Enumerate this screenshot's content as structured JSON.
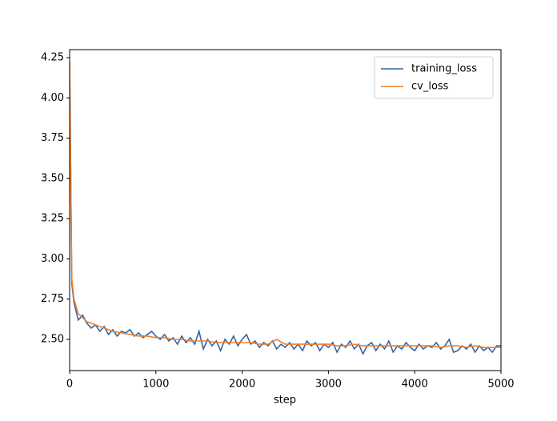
{
  "chart_data": {
    "type": "line",
    "xlabel": "step",
    "xlim": [
      0,
      5000
    ],
    "xticks": [
      0,
      1000,
      2000,
      3000,
      4000,
      5000
    ],
    "ylim": [
      2.306,
      4.3
    ],
    "yticks": [
      {
        "value": 2.5,
        "label": "2.50"
      },
      2.75,
      {
        "value": 3,
        "label": "3.00"
      },
      3.25,
      {
        "value": 3.5,
        "label": "3.50"
      },
      3.75,
      {
        "value": 4,
        "label": "4.00"
      },
      4.25
    ],
    "legend": "upper right",
    "series": [
      {
        "name": "training_loss",
        "color": "#3465a4",
        "x": [
          0,
          25,
          50,
          100,
          150,
          200,
          250,
          300,
          350,
          400,
          450,
          500,
          550,
          600,
          650,
          700,
          750,
          800,
          850,
          900,
          950,
          1000,
          1050,
          1100,
          1150,
          1200,
          1250,
          1300,
          1350,
          1400,
          1450,
          1500,
          1550,
          1600,
          1650,
          1700,
          1750,
          1800,
          1850,
          1900,
          1950,
          2000,
          2050,
          2100,
          2150,
          2200,
          2250,
          2300,
          2350,
          2400,
          2450,
          2500,
          2550,
          2600,
          2650,
          2700,
          2750,
          2800,
          2850,
          2900,
          2950,
          3000,
          3050,
          3100,
          3150,
          3200,
          3250,
          3300,
          3350,
          3400,
          3450,
          3500,
          3550,
          3600,
          3650,
          3700,
          3750,
          3800,
          3850,
          3900,
          3950,
          4000,
          4050,
          4100,
          4150,
          4200,
          4250,
          4300,
          4350,
          4400,
          4450,
          4500,
          4550,
          4600,
          4650,
          4700,
          4750,
          4800,
          4850,
          4900,
          4950,
          5000
        ],
        "values": [
          4.22,
          2.85,
          2.73,
          2.62,
          2.65,
          2.6,
          2.57,
          2.59,
          2.55,
          2.58,
          2.53,
          2.56,
          2.52,
          2.55,
          2.54,
          2.56,
          2.52,
          2.54,
          2.51,
          2.53,
          2.55,
          2.52,
          2.5,
          2.53,
          2.49,
          2.51,
          2.47,
          2.52,
          2.48,
          2.51,
          2.47,
          2.55,
          2.44,
          2.5,
          2.46,
          2.49,
          2.43,
          2.5,
          2.47,
          2.52,
          2.46,
          2.5,
          2.53,
          2.47,
          2.49,
          2.45,
          2.48,
          2.46,
          2.49,
          2.44,
          2.47,
          2.45,
          2.48,
          2.44,
          2.47,
          2.43,
          2.49,
          2.46,
          2.48,
          2.43,
          2.47,
          2.45,
          2.48,
          2.42,
          2.47,
          2.45,
          2.49,
          2.44,
          2.47,
          2.41,
          2.46,
          2.48,
          2.43,
          2.47,
          2.44,
          2.49,
          2.42,
          2.46,
          2.44,
          2.48,
          2.45,
          2.43,
          2.47,
          2.44,
          2.46,
          2.45,
          2.48,
          2.44,
          2.46,
          2.5,
          2.42,
          2.43,
          2.46,
          2.44,
          2.47,
          2.42,
          2.46,
          2.43,
          2.45,
          2.42,
          2.46,
          2.46
        ]
      },
      {
        "name": "cv_loss",
        "color": "#f07f2a",
        "x": [
          0,
          25,
          50,
          100,
          200,
          300,
          400,
          500,
          600,
          700,
          800,
          900,
          1000,
          1100,
          1200,
          1300,
          1400,
          1500,
          1600,
          1700,
          1800,
          1900,
          2000,
          2100,
          2200,
          2300,
          2400,
          2500,
          2600,
          2700,
          2800,
          2900,
          3000,
          3100,
          3200,
          3300,
          3400,
          3500,
          3600,
          3700,
          3800,
          3900,
          4000,
          4100,
          4200,
          4300,
          4400,
          4500,
          4600,
          4700,
          4800,
          4900,
          5000
        ],
        "values": [
          4.22,
          2.88,
          2.75,
          2.66,
          2.61,
          2.59,
          2.57,
          2.55,
          2.54,
          2.53,
          2.52,
          2.52,
          2.51,
          2.51,
          2.5,
          2.5,
          2.49,
          2.49,
          2.49,
          2.48,
          2.48,
          2.48,
          2.48,
          2.48,
          2.47,
          2.47,
          2.5,
          2.47,
          2.47,
          2.47,
          2.47,
          2.47,
          2.47,
          2.46,
          2.46,
          2.47,
          2.46,
          2.46,
          2.46,
          2.46,
          2.46,
          2.46,
          2.46,
          2.46,
          2.46,
          2.45,
          2.46,
          2.46,
          2.45,
          2.46,
          2.45,
          2.45,
          2.45
        ]
      }
    ]
  }
}
